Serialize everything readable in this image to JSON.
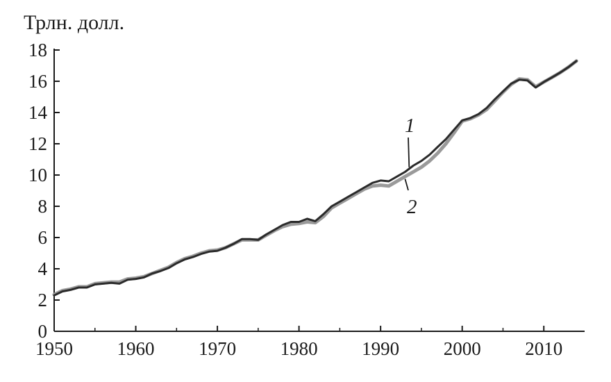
{
  "chart_data": {
    "type": "line",
    "ylabel": "Трлн. долл.",
    "xlabel": "",
    "xlim": [
      1950,
      2015
    ],
    "ylim": [
      0,
      18
    ],
    "x_ticks": [
      1950,
      1960,
      1970,
      1980,
      1990,
      2000,
      2010
    ],
    "y_ticks": [
      0,
      2,
      4,
      6,
      8,
      10,
      12,
      14,
      16,
      18
    ],
    "grid": false,
    "legend": "none",
    "series": [
      {
        "name": "1",
        "color": "#2a2a2a",
        "x": [
          1950,
          1951,
          1952,
          1953,
          1954,
          1955,
          1956,
          1957,
          1958,
          1959,
          1960,
          1961,
          1962,
          1963,
          1964,
          1965,
          1966,
          1967,
          1968,
          1969,
          1970,
          1971,
          1972,
          1973,
          1974,
          1975,
          1976,
          1977,
          1978,
          1979,
          1980,
          1981,
          1982,
          1983,
          1984,
          1985,
          1986,
          1987,
          1988,
          1989,
          1990,
          1991,
          1992,
          1993,
          1994,
          1995,
          1996,
          1997,
          1998,
          1999,
          2000,
          2001,
          2002,
          2003,
          2004,
          2005,
          2006,
          2007,
          2008,
          2009,
          2010,
          2011,
          2012,
          2013,
          2014
        ],
        "values": [
          2.3,
          2.55,
          2.65,
          2.8,
          2.8,
          3.0,
          3.05,
          3.1,
          3.05,
          3.3,
          3.35,
          3.45,
          3.7,
          3.85,
          4.05,
          4.35,
          4.6,
          4.75,
          4.95,
          5.1,
          5.15,
          5.35,
          5.6,
          5.9,
          5.9,
          5.85,
          6.2,
          6.5,
          6.8,
          7.0,
          7.0,
          7.2,
          7.05,
          7.5,
          8.0,
          8.3,
          8.6,
          8.9,
          9.2,
          9.5,
          9.65,
          9.6,
          9.9,
          10.2,
          10.6,
          10.9,
          11.3,
          11.8,
          12.3,
          12.9,
          13.5,
          13.65,
          13.9,
          14.3,
          14.85,
          15.35,
          15.85,
          16.1,
          16.05,
          15.6,
          15.95,
          16.25,
          16.55,
          16.9,
          17.3
        ]
      },
      {
        "name": "2",
        "color": "#9a9a9a",
        "x": [
          1950,
          1951,
          1952,
          1953,
          1954,
          1955,
          1956,
          1957,
          1958,
          1959,
          1960,
          1961,
          1962,
          1963,
          1964,
          1965,
          1966,
          1967,
          1968,
          1969,
          1970,
          1971,
          1972,
          1973,
          1974,
          1975,
          1976,
          1977,
          1978,
          1979,
          1980,
          1981,
          1982,
          1983,
          1984,
          1985,
          1986,
          1987,
          1988,
          1989,
          1990,
          1991,
          1992,
          1993,
          1994,
          1995,
          1996,
          1997,
          1998,
          1999,
          2000,
          2001,
          2002,
          2003,
          2004,
          2005,
          2006,
          2007,
          2008,
          2009,
          2010,
          2011,
          2012,
          2013,
          2014
        ],
        "values": [
          2.35,
          2.6,
          2.7,
          2.85,
          2.85,
          3.05,
          3.1,
          3.15,
          3.15,
          3.35,
          3.4,
          3.5,
          3.7,
          3.9,
          4.1,
          4.4,
          4.65,
          4.8,
          5.0,
          5.15,
          5.2,
          5.35,
          5.6,
          5.85,
          5.85,
          5.85,
          6.15,
          6.45,
          6.7,
          6.85,
          6.9,
          7.0,
          6.95,
          7.35,
          7.9,
          8.2,
          8.5,
          8.8,
          9.1,
          9.3,
          9.35,
          9.3,
          9.6,
          9.9,
          10.2,
          10.5,
          10.9,
          11.4,
          12.0,
          12.7,
          13.45,
          13.6,
          13.85,
          14.2,
          14.75,
          15.3,
          15.8,
          16.15,
          16.1,
          15.65,
          15.95,
          16.25,
          16.55,
          16.9,
          17.3
        ]
      }
    ]
  }
}
